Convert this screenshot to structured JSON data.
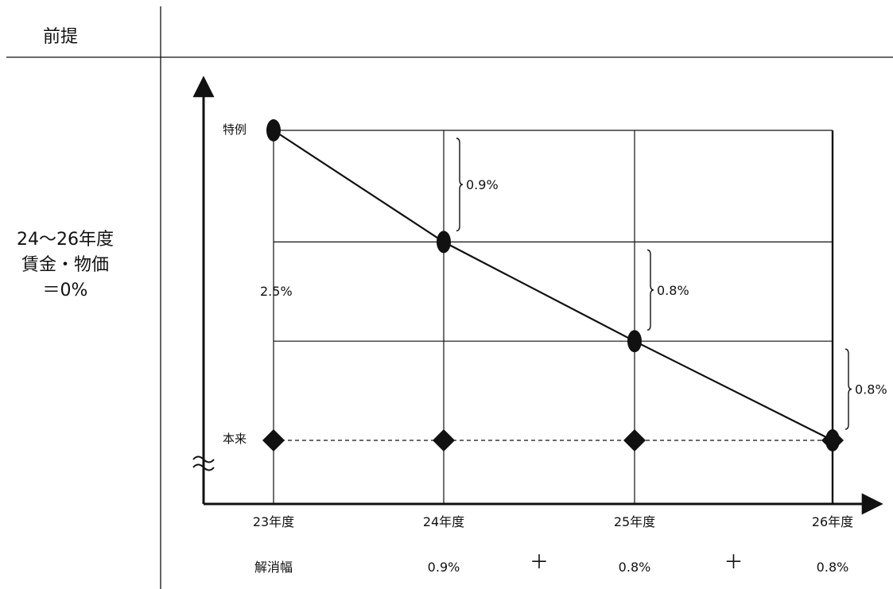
{
  "header": {
    "label": "前提"
  },
  "premise": {
    "lines": [
      "24〜26年度",
      "賃金・物価",
      "＝0%"
    ]
  },
  "chart_data": {
    "type": "line",
    "x": [
      "23年度",
      "24年度",
      "25年度",
      "26年度"
    ],
    "series": [
      {
        "name": "特例",
        "marker": "circle",
        "line": "solid",
        "values": [
          2.5,
          1.6,
          0.8,
          0.0
        ]
      },
      {
        "name": "本来",
        "marker": "diamond",
        "line": "dashed",
        "values": [
          0.0,
          0.0,
          0.0,
          0.0
        ]
      }
    ],
    "ylim": [
      0,
      2.5
    ],
    "grid": true,
    "axis_break_on_y": true,
    "gap_label": "2.5%",
    "step_labels": [
      "0.9%",
      "0.8%",
      "0.8%"
    ],
    "bottom_row": {
      "label": "解消幅",
      "values": [
        "0.9%",
        "0.8%",
        "0.8%"
      ],
      "operator": "＋"
    }
  },
  "colors": {
    "ink": "#111111",
    "background": "#ffffff"
  }
}
